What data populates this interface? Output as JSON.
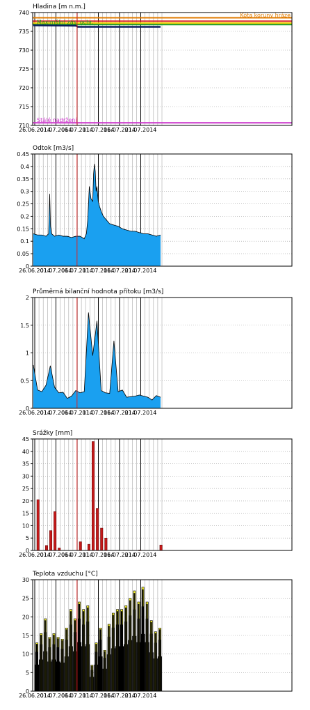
{
  "chart_data": [
    {
      "type": "line",
      "title": "Hladina [m n.m.]",
      "ylim": [
        710,
        740
      ],
      "yticks": [
        710,
        715,
        720,
        725,
        730,
        735,
        740
      ],
      "xticks": [
        "26.06.2014",
        "01.07.2014",
        "06.07.2014",
        "11.07.2014",
        "16.07.2014",
        "21.07.2014"
      ],
      "reference_lines": [
        {
          "label": "Kóta koruny hráze",
          "value": 738.6,
          "color": "#e07b00"
        },
        {
          "label": "",
          "value": 737.7,
          "color": "#d81b1b"
        },
        {
          "label": "",
          "value": 737.2,
          "color": "#f5d000"
        },
        {
          "label": "Maximální zás. ochr.",
          "value": 736.8,
          "color": "#1f9a1f"
        },
        {
          "label": "Stálé nadržení",
          "value": 710.7,
          "color": "#cc33cc"
        }
      ],
      "x": [
        0,
        10,
        10.5,
        30
      ],
      "y": [
        736.6,
        736.5,
        736.2,
        736.2
      ]
    },
    {
      "type": "area",
      "title": "Odtok [m3/s]",
      "ylim": [
        0,
        0.45
      ],
      "yticks": [
        0,
        0.05,
        0.1,
        0.15,
        0.2,
        0.25,
        0.3,
        0.35,
        0.4,
        0.45
      ],
      "xticks": [
        "26.06.2014",
        "01.07.2014",
        "06.07.2014",
        "11.07.2014",
        "16.07.2014",
        "21.07.2014"
      ],
      "x": [
        0,
        1,
        2,
        3,
        3.6,
        3.85,
        4.05,
        4.3,
        5,
        6,
        7,
        8,
        9,
        10,
        11,
        12,
        12.5,
        12.8,
        13.2,
        13.6,
        14,
        14.2,
        14.4,
        14.6,
        14.8,
        15,
        15.3,
        15.6,
        16,
        16.5,
        17,
        18,
        19,
        20,
        21,
        22,
        23,
        24,
        25,
        26,
        27,
        28,
        29,
        30
      ],
      "values": [
        0.13,
        0.125,
        0.125,
        0.12,
        0.13,
        0.29,
        0.16,
        0.13,
        0.12,
        0.125,
        0.12,
        0.12,
        0.115,
        0.12,
        0.12,
        0.11,
        0.13,
        0.18,
        0.32,
        0.27,
        0.26,
        0.37,
        0.41,
        0.38,
        0.3,
        0.32,
        0.26,
        0.24,
        0.22,
        0.2,
        0.19,
        0.17,
        0.165,
        0.16,
        0.15,
        0.145,
        0.14,
        0.14,
        0.135,
        0.13,
        0.13,
        0.125,
        0.12,
        0.125
      ]
    },
    {
      "type": "area",
      "title": "Průměrná bilanční hodnota přítoku [m3/s]",
      "ylim": [
        0,
        2
      ],
      "yticks": [
        0,
        0.5,
        1,
        1.5,
        2
      ],
      "xticks": [
        "26.06.2014",
        "01.07.2014",
        "06.07.2014",
        "11.07.2014",
        "16.07.2014",
        "21.07.2014"
      ],
      "x": [
        0,
        1,
        2,
        3,
        4,
        5,
        6,
        7,
        8,
        9,
        10,
        11,
        12,
        13,
        14,
        15,
        16,
        17,
        18,
        19,
        20,
        21,
        22,
        23,
        24,
        25,
        26,
        27,
        28,
        29,
        30
      ],
      "values": [
        0.78,
        0.33,
        0.3,
        0.42,
        0.77,
        0.38,
        0.28,
        0.29,
        0.18,
        0.22,
        0.32,
        0.28,
        0.3,
        1.73,
        0.95,
        1.58,
        0.32,
        0.28,
        0.27,
        1.22,
        0.3,
        0.33,
        0.2,
        0.21,
        0.22,
        0.24,
        0.22,
        0.2,
        0.15,
        0.23,
        0.2
      ]
    },
    {
      "type": "bar",
      "title": "Srážky [mm]",
      "ylim": [
        0,
        45
      ],
      "yticks": [
        0,
        5,
        10,
        15,
        20,
        25,
        30,
        35,
        40,
        45
      ],
      "xticks": [
        "26.06.2014",
        "01.07.2014",
        "06.07.2014",
        "11.07.2014",
        "16.07.2014",
        "21.07.2014"
      ],
      "x": [
        0,
        1,
        2,
        3,
        4,
        5,
        6,
        7,
        8,
        9,
        10,
        11,
        12,
        13,
        14,
        15,
        16,
        17,
        18,
        19,
        20,
        21,
        22,
        23,
        24,
        25,
        26,
        27,
        28,
        29
      ],
      "values": [
        20.5,
        0,
        2,
        8,
        15.7,
        1,
        0,
        0,
        0,
        0,
        3.5,
        0,
        2.5,
        44,
        17,
        9,
        5,
        0,
        0,
        0,
        0,
        0,
        0,
        0,
        0.2,
        0,
        0,
        0,
        0,
        2.2
      ]
    },
    {
      "type": "bar",
      "title": "Teplota vzduchu [°C]",
      "ylim": [
        0,
        30
      ],
      "yticks": [
        0,
        5,
        10,
        15,
        20,
        25,
        30
      ],
      "xticks": [
        "26.06.2014",
        "01.07.2014",
        "06.07.2014",
        "11.07.2014",
        "16.07.2014",
        "21.07.2014"
      ],
      "series": [
        {
          "x": [
            0,
            1,
            2,
            3,
            4,
            5,
            6,
            7,
            8,
            9,
            10,
            11,
            12,
            13,
            14,
            15,
            16,
            17,
            18,
            19,
            20,
            21,
            22,
            23,
            24,
            25,
            26,
            27,
            28,
            29
          ],
          "values": [
            13,
            15.5,
            19.5,
            14.5,
            15.5,
            14.5,
            14,
            17,
            22,
            19.5,
            24,
            22,
            23,
            7,
            13,
            17,
            11,
            18,
            21,
            22,
            22,
            23,
            25,
            27,
            24,
            28,
            24,
            19,
            16,
            17
          ]
        }
      ]
    }
  ]
}
